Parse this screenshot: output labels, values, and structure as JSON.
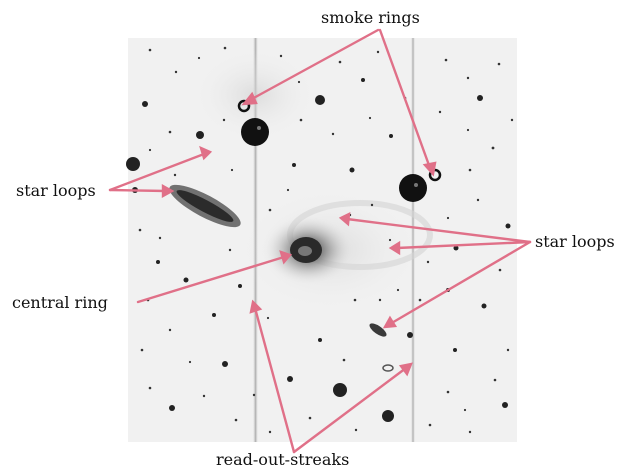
{
  "labels": {
    "smoke_rings": "smoke rings",
    "star_loops_left": "star loops",
    "star_loops_right": "star loops",
    "central_ring": "central ring",
    "read_out_streaks": "read-out-streaks"
  },
  "colors": {
    "background": "#ffffff",
    "sky": "#f1f1f1",
    "arrow": "#e07088",
    "star": "#111111",
    "text": "#111111"
  }
}
